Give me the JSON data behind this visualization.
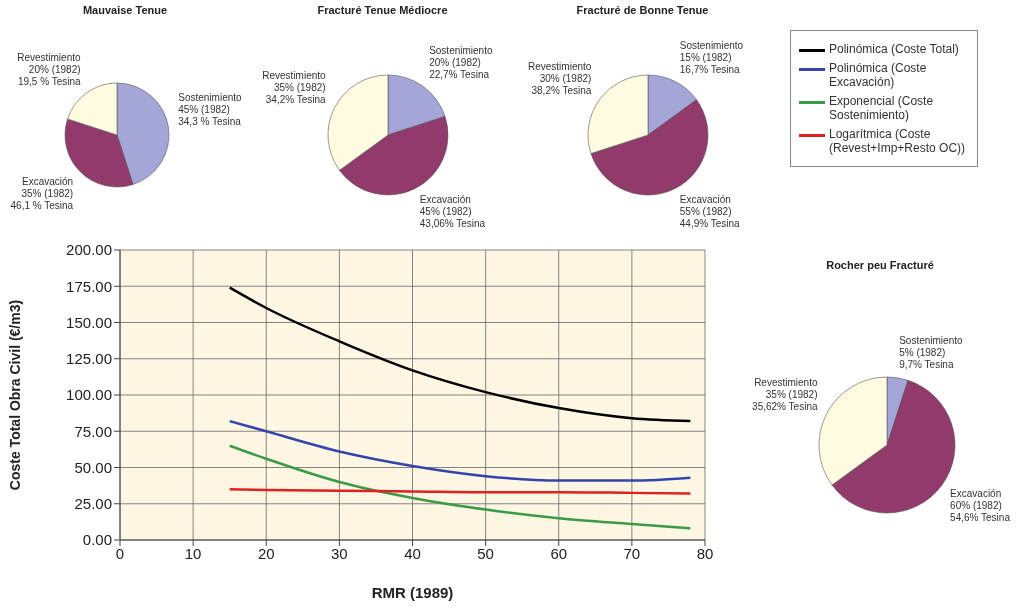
{
  "chart_data": [
    {
      "type": "pie",
      "title": "Mauvaise Tenue",
      "categories": [
        "Sostenimiento",
        "Excavación",
        "Revestimiento"
      ],
      "values": [
        45,
        35,
        20
      ],
      "colors": [
        "#a5a6d8",
        "#933a6c",
        "#fffbe1"
      ],
      "value_labels": [
        "45% (1982)\n34,3 % Tesina",
        "35% (1982)\n46,1 % Tesina",
        "20% (1982)\n19,5 % Tesina"
      ]
    },
    {
      "type": "pie",
      "title": "Fracturé Tenue Médiocre",
      "categories": [
        "Sostenimiento",
        "Excavación",
        "Revestimiento"
      ],
      "values": [
        20,
        45,
        35
      ],
      "colors": [
        "#a5a6d8",
        "#933a6c",
        "#fffbe1"
      ],
      "value_labels": [
        "20% (1982)\n22,7% Tesina",
        "45% (1982)\n43,06% Tesina",
        "35% (1982)\n34,2% Tesina"
      ]
    },
    {
      "type": "pie",
      "title": "Fracturé de Bonne Tenue",
      "categories": [
        "Sostenimiento",
        "Excavación",
        "Revestimiento"
      ],
      "values": [
        15,
        55,
        30
      ],
      "colors": [
        "#a5a6d8",
        "#933a6c",
        "#fffbe1"
      ],
      "value_labels": [
        "15% (1982)\n16,7% Tesina",
        "55% (1982)\n44,9% Tesina",
        "30% (1982)\n38,2% Tesina"
      ]
    },
    {
      "type": "line",
      "xlabel": "RMR (1989)",
      "ylabel": "Coste Total Obra Civil (€/m3)",
      "x": [
        15,
        20,
        30,
        40,
        50,
        60,
        70,
        78
      ],
      "xlim": [
        0,
        80
      ],
      "xticks": [
        0,
        10,
        20,
        30,
        40,
        50,
        60,
        70,
        80
      ],
      "ylim": [
        0,
        200
      ],
      "yticks": [
        {
          "value": 0,
          "label": "0.00"
        },
        {
          "value": 25,
          "label": "25.00"
        },
        {
          "value": 50,
          "label": "50.00"
        },
        {
          "value": 75,
          "label": "75.00"
        },
        {
          "value": 100,
          "label": "100.00"
        },
        {
          "value": 125,
          "label": "125.00"
        },
        {
          "value": 150,
          "label": "150.00"
        },
        {
          "value": 175,
          "label": "175.00"
        },
        {
          "value": 200,
          "label": "200.00"
        }
      ],
      "grid": true,
      "legend": "top right",
      "series": [
        {
          "name": "Polinómica (Coste Total)",
          "color": "#000000",
          "values": [
            174,
            160,
            137,
            117,
            102,
            91,
            84,
            82
          ]
        },
        {
          "name": "Polinómica (Coste Excavación)",
          "color": "#3344aa",
          "values": [
            82,
            75,
            61,
            51,
            44,
            41,
            41,
            43
          ]
        },
        {
          "name": "Exponencial (Coste Sostenimiento)",
          "color": "#3a9a48",
          "values": [
            65,
            56,
            40,
            29,
            21,
            15,
            11,
            8
          ]
        },
        {
          "name": "Logarítmica (Coste (Revest+Imp+Resto OC))",
          "color": "#dd2222",
          "values": [
            35,
            34.5,
            34,
            33.5,
            33,
            33,
            32.5,
            32
          ]
        }
      ]
    },
    {
      "type": "pie",
      "title": "Rocher peu Fracturé",
      "categories": [
        "Sostenimiento",
        "Excavación",
        "Revestimiento"
      ],
      "values": [
        5,
        60,
        35
      ],
      "colors": [
        "#a5a6d8",
        "#933a6c",
        "#fffbe1"
      ],
      "value_labels": [
        "5% (1982)\n9,7% Tesina",
        "60% (1982)\n54,6% Tesina",
        "35% (1982)\n35,62% Tesina"
      ]
    }
  ]
}
